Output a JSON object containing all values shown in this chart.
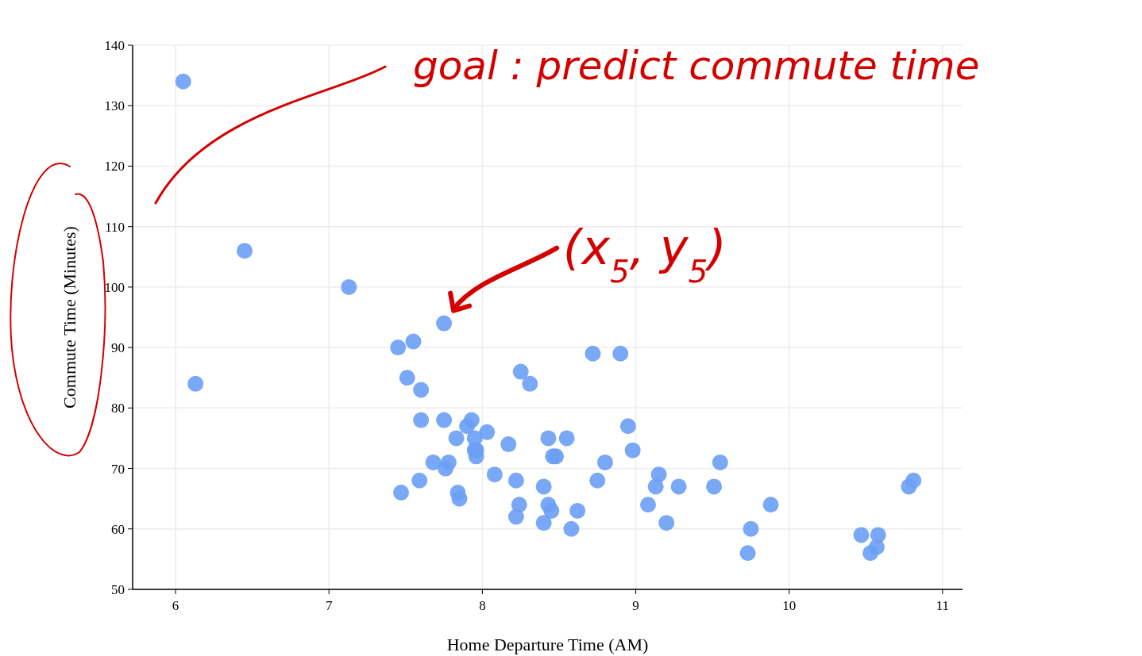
{
  "chart_data": {
    "type": "scatter",
    "xlabel": "Home Departure Time (AM)",
    "ylabel": "Commute Time (Minutes)",
    "xlim": [
      5.72,
      11.13
    ],
    "ylim": [
      50,
      140
    ],
    "xticks": [
      6,
      7,
      8,
      9,
      10,
      11
    ],
    "yticks": [
      50,
      60,
      70,
      80,
      90,
      100,
      110,
      120,
      130,
      140
    ],
    "grid": true,
    "marker": "circle",
    "annotations": [
      "goal : predict commute time",
      {
        "text": "(x$_{5}$, y$_{5}$)",
        "x": 7.75,
        "y": 94
      }
    ],
    "series": [
      {
        "color": "#6a9ef5",
        "x": [
          6.05,
          6.13,
          6.45,
          7.13,
          7.75,
          7.45,
          7.55,
          7.51,
          7.6,
          7.6,
          7.75,
          7.93,
          7.9,
          8.03,
          7.83,
          7.95,
          7.95,
          7.96,
          7.96,
          7.68,
          7.78,
          7.76,
          7.59,
          7.47,
          7.84,
          7.85,
          8.17,
          8.08,
          8.22,
          8.24,
          8.22,
          8.25,
          8.31,
          8.43,
          8.55,
          8.46,
          8.48,
          8.4,
          8.43,
          8.45,
          8.4,
          8.62,
          8.58,
          8.72,
          8.9,
          8.95,
          8.98,
          8.8,
          8.75,
          9.15,
          9.13,
          9.08,
          9.2,
          9.28,
          9.55,
          9.51,
          9.88,
          9.75,
          9.73,
          10.47,
          10.58,
          10.57,
          10.53,
          10.78,
          10.81
        ],
        "values": [
          134,
          84,
          106,
          100,
          94,
          90,
          91,
          85,
          83,
          78,
          78,
          78,
          77,
          76,
          75,
          75,
          73,
          73,
          72,
          71,
          71,
          70,
          68,
          66,
          66,
          65,
          74,
          69,
          68,
          64,
          62,
          86,
          84,
          75,
          75,
          72,
          72,
          67,
          64,
          63,
          61,
          63,
          60,
          89,
          89,
          77,
          73,
          71,
          68,
          69,
          67,
          64,
          61,
          67,
          71,
          67,
          64,
          60,
          56,
          59,
          59,
          57,
          56,
          67,
          68
        ]
      }
    ]
  }
}
